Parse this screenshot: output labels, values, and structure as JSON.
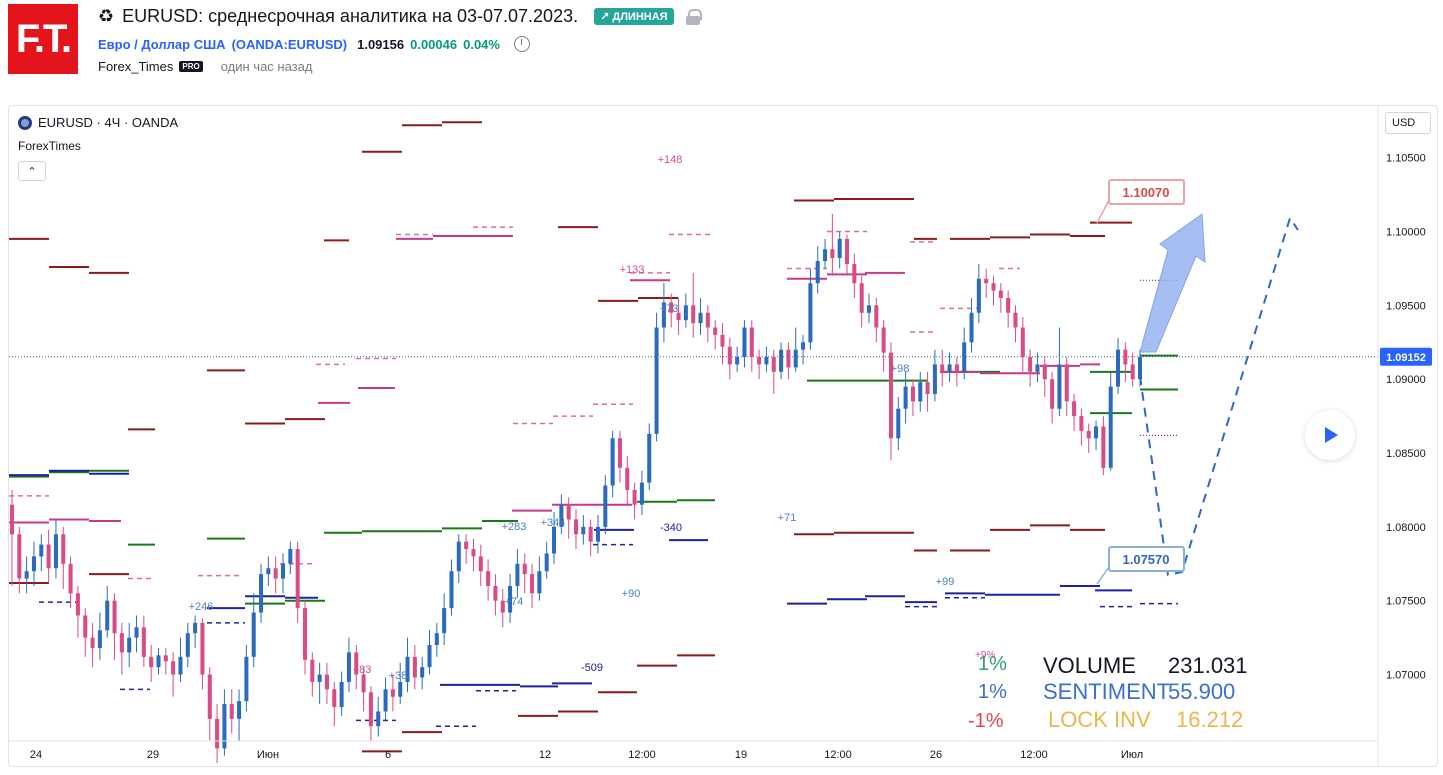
{
  "header": {
    "logo_text": "F.T.",
    "recycle_icon": "♻",
    "title": "EURUSD: среднесрочная аналитика на 03-07.07.2023.",
    "badge": "↗ ДЛИННАЯ",
    "symbol_name": "Евро / Доллар США",
    "symbol_code": "(OANDA:EURUSD)",
    "price": "1.09156",
    "change": "0.00046",
    "change_pct": "0.04%",
    "author": "Forex_Times",
    "pro_badge": "PRO",
    "time_ago": "один час назад"
  },
  "chart_legend": {
    "symbol": "EURUSD · 4Ч · OANDA",
    "indicator": "ForexTimes",
    "collapse": "⌃",
    "currency": "USD"
  },
  "stats": {
    "pct_volume": "1%",
    "pct_sentiment": "1%",
    "pct_lock": "-1%",
    "volume_label": "VOLUME",
    "volume_value": "231.031",
    "sentiment_label": "SENTIMENT",
    "sentiment_value": "55.900",
    "lock_label": "LOCK INV",
    "lock_value": "16.212",
    "pct_small": "+9%"
  },
  "chart_data": {
    "type": "candlestick",
    "symbol": "EURUSD",
    "timeframe": "4Ч",
    "ylim": [
      1.0655,
      1.1085
    ],
    "y_ticks": [
      "1.10500",
      "1.10000",
      "1.09500",
      "1.09000",
      "1.08500",
      "1.08000",
      "1.07500",
      "1.07000"
    ],
    "y_tick_values": [
      1.105,
      1.1,
      1.095,
      1.09,
      1.085,
      1.08,
      1.075,
      1.07
    ],
    "x_ticks": [
      "24",
      "29",
      "Июн",
      "6",
      "12",
      "12:00",
      "19",
      "12:00",
      "26",
      "12:00",
      "Июл"
    ],
    "current_price": "1.09152",
    "target_up": "1.10070",
    "target_down": "1.07570",
    "annotations": [
      "+148",
      "+133",
      "+73",
      "+283",
      "+344",
      "-340",
      "+71",
      "+90",
      "+74",
      "+246",
      "+99",
      "-509",
      "+98",
      "+83",
      "+38"
    ],
    "candles": [
      [
        1.0815,
        1.0795,
        1.076,
        1.0825
      ],
      [
        1.0795,
        1.0765,
        1.0755,
        1.08
      ],
      [
        1.0765,
        1.077,
        1.0755,
        1.078
      ],
      [
        1.077,
        1.078,
        1.076,
        1.079
      ],
      [
        1.078,
        1.0788,
        1.077,
        1.0795
      ],
      [
        1.0788,
        1.0772,
        1.0762,
        1.0798
      ],
      [
        1.0772,
        1.0795,
        1.0765,
        1.0805
      ],
      [
        1.0795,
        1.0775,
        1.0758,
        1.08
      ],
      [
        1.0775,
        1.0755,
        1.0745,
        1.078
      ],
      [
        1.0755,
        1.074,
        1.0725,
        1.076
      ],
      [
        1.074,
        1.0725,
        1.0712,
        1.0745
      ],
      [
        1.0725,
        1.0718,
        1.0705,
        1.0735
      ],
      [
        1.0718,
        1.073,
        1.071,
        1.0742
      ],
      [
        1.073,
        1.075,
        1.0725,
        1.076
      ],
      [
        1.075,
        1.0728,
        1.071,
        1.0755
      ],
      [
        1.0728,
        1.0715,
        1.07,
        1.0735
      ],
      [
        1.0715,
        1.0725,
        1.0705,
        1.0735
      ],
      [
        1.0725,
        1.0732,
        1.0715,
        1.074
      ],
      [
        1.0732,
        1.0712,
        1.0705,
        1.074
      ],
      [
        1.0712,
        1.0705,
        1.0695,
        1.072
      ],
      [
        1.0705,
        1.0713,
        1.07,
        1.0718
      ],
      [
        1.0713,
        1.0709,
        1.07,
        1.0718
      ],
      [
        1.0709,
        1.07,
        1.0685,
        1.0715
      ],
      [
        1.07,
        1.0712,
        1.0695,
        1.0725
      ],
      [
        1.0712,
        1.0728,
        1.0705,
        1.0735
      ],
      [
        1.0728,
        1.0735,
        1.0718,
        1.074
      ],
      [
        1.0735,
        1.07,
        1.069,
        1.0738
      ],
      [
        1.07,
        1.067,
        1.0655,
        1.0705
      ],
      [
        1.067,
        1.065,
        1.064,
        1.068
      ],
      [
        1.065,
        1.068,
        1.0645,
        1.069
      ],
      [
        1.068,
        1.067,
        1.066,
        1.069
      ],
      [
        1.067,
        1.0682,
        1.0655,
        1.069
      ],
      [
        1.0682,
        1.0712,
        1.0675,
        1.072
      ],
      [
        1.0712,
        1.0742,
        1.0705,
        1.0755
      ],
      [
        1.0742,
        1.0768,
        1.0735,
        1.0775
      ],
      [
        1.0768,
        1.0772,
        1.076,
        1.078
      ],
      [
        1.0772,
        1.0765,
        1.0755,
        1.078
      ],
      [
        1.0765,
        1.0775,
        1.0755,
        1.0782
      ],
      [
        1.0775,
        1.0785,
        1.0768,
        1.079
      ],
      [
        1.0785,
        1.0745,
        1.0735,
        1.079
      ],
      [
        1.0745,
        1.071,
        1.07,
        1.075
      ],
      [
        1.071,
        1.0695,
        1.0685,
        1.0715
      ],
      [
        1.0695,
        1.07,
        1.068,
        1.0708
      ],
      [
        1.07,
        1.069,
        1.068,
        1.0708
      ],
      [
        1.069,
        1.0678,
        1.0665,
        1.0695
      ],
      [
        1.0678,
        1.0695,
        1.0672,
        1.0702
      ],
      [
        1.0695,
        1.0715,
        1.0688,
        1.0725
      ],
      [
        1.0715,
        1.07,
        1.069,
        1.072
      ],
      [
        1.07,
        1.0688,
        1.0675,
        1.0705
      ],
      [
        1.0688,
        1.0665,
        1.0655,
        1.0692
      ],
      [
        1.0665,
        1.0675,
        1.0658,
        1.0685
      ],
      [
        1.0675,
        1.069,
        1.0668,
        1.0698
      ],
      [
        1.069,
        1.0685,
        1.0675,
        1.07
      ],
      [
        1.0685,
        1.0695,
        1.068,
        1.0708
      ],
      [
        1.0695,
        1.0712,
        1.0688,
        1.0725
      ],
      [
        1.0712,
        1.0698,
        1.069,
        1.072
      ],
      [
        1.0698,
        1.0705,
        1.069,
        1.0712
      ],
      [
        1.0705,
        1.072,
        1.07,
        1.073
      ],
      [
        1.072,
        1.0728,
        1.0712,
        1.0735
      ],
      [
        1.0728,
        1.0745,
        1.072,
        1.0755
      ],
      [
        1.0745,
        1.077,
        1.074,
        1.0778
      ],
      [
        1.077,
        1.079,
        1.0762,
        1.0795
      ],
      [
        1.079,
        1.0785,
        1.0775,
        1.0795
      ],
      [
        1.0785,
        1.078,
        1.077,
        1.0792
      ],
      [
        1.078,
        1.077,
        1.076,
        1.0788
      ],
      [
        1.077,
        1.076,
        1.075,
        1.0778
      ],
      [
        1.076,
        1.075,
        1.074,
        1.0768
      ],
      [
        1.075,
        1.0742,
        1.0732,
        1.0758
      ],
      [
        1.0742,
        1.076,
        1.0735,
        1.0768
      ],
      [
        1.076,
        1.0775,
        1.0752,
        1.0785
      ],
      [
        1.0775,
        1.0768,
        1.0755,
        1.0782
      ],
      [
        1.0768,
        1.0755,
        1.0745,
        1.0775
      ],
      [
        1.0755,
        1.077,
        1.075,
        1.078
      ],
      [
        1.077,
        1.0782,
        1.0765,
        1.079
      ],
      [
        1.0782,
        1.08,
        1.0775,
        1.081
      ],
      [
        1.08,
        1.0815,
        1.0795,
        1.0822
      ],
      [
        1.0815,
        1.0805,
        1.0792,
        1.082
      ],
      [
        1.0805,
        1.0795,
        1.0785,
        1.0812
      ],
      [
        1.0795,
        1.08,
        1.0788,
        1.0808
      ],
      [
        1.08,
        1.079,
        1.078,
        1.0805
      ],
      [
        1.079,
        1.08,
        1.0782,
        1.0808
      ],
      [
        1.08,
        1.0828,
        1.0795,
        1.0835
      ],
      [
        1.0828,
        1.086,
        1.082,
        1.0865
      ],
      [
        1.086,
        1.084,
        1.083,
        1.0865
      ],
      [
        1.084,
        1.0825,
        1.0815,
        1.0848
      ],
      [
        1.0825,
        1.0815,
        1.0805,
        1.083
      ],
      [
        1.0815,
        1.083,
        1.0808,
        1.0838
      ],
      [
        1.083,
        1.0863,
        1.0825,
        1.087
      ],
      [
        1.0863,
        1.0935,
        1.0858,
        1.0945
      ],
      [
        1.0935,
        1.0952,
        1.0925,
        1.0965
      ],
      [
        1.0952,
        1.0945,
        1.0935,
        1.0958
      ],
      [
        1.0945,
        1.094,
        1.093,
        1.0955
      ],
      [
        1.094,
        1.095,
        1.0935,
        1.0958
      ],
      [
        1.095,
        1.0938,
        1.0928,
        1.0972
      ],
      [
        1.0938,
        1.0945,
        1.093,
        1.0955
      ],
      [
        1.0945,
        1.0935,
        1.0925,
        1.095
      ],
      [
        1.0935,
        1.093,
        1.092,
        1.094
      ],
      [
        1.093,
        1.0922,
        1.091,
        1.0938
      ],
      [
        1.0922,
        1.091,
        1.09,
        1.0928
      ],
      [
        1.091,
        1.0915,
        1.0905,
        1.0922
      ],
      [
        1.0915,
        1.0935,
        1.0908,
        1.094
      ],
      [
        1.0935,
        1.0915,
        1.0905,
        1.094
      ],
      [
        1.0915,
        1.091,
        1.09,
        1.092
      ],
      [
        1.091,
        1.0915,
        1.0905,
        1.0922
      ],
      [
        1.0915,
        1.0905,
        1.089,
        1.092
      ],
      [
        1.0905,
        1.092,
        1.09,
        1.0925
      ],
      [
        1.092,
        1.0908,
        1.09,
        1.0925
      ],
      [
        1.0908,
        1.092,
        1.0905,
        1.0935
      ],
      [
        1.092,
        1.0925,
        1.091,
        1.093
      ],
      [
        1.0925,
        1.0965,
        1.092,
        1.0975
      ],
      [
        1.0965,
        1.098,
        1.0958,
        1.099
      ],
      [
        1.098,
        1.0988,
        1.0975,
        1.0995
      ],
      [
        1.0988,
        1.0982,
        1.097,
        1.1012
      ],
      [
        1.0982,
        1.0995,
        1.0975,
        1.1
      ],
      [
        1.0995,
        1.0978,
        1.097,
        1.0998
      ],
      [
        1.0978,
        1.0965,
        1.0955,
        1.0985
      ],
      [
        1.0965,
        1.0945,
        1.0935,
        1.097
      ],
      [
        1.0945,
        1.095,
        1.0938,
        1.0958
      ],
      [
        1.095,
        1.0935,
        1.0925,
        1.0955
      ],
      [
        1.0935,
        1.0918,
        1.0905,
        1.094
      ],
      [
        1.0918,
        1.086,
        1.0845,
        1.0925
      ],
      [
        1.086,
        1.088,
        1.0852,
        1.0888
      ],
      [
        1.088,
        1.0895,
        1.087,
        1.0905
      ],
      [
        1.0895,
        1.0885,
        1.0875,
        1.09
      ],
      [
        1.0885,
        1.0898,
        1.0878,
        1.0905
      ],
      [
        1.0898,
        1.089,
        1.0878,
        1.0905
      ],
      [
        1.089,
        1.091,
        1.0885,
        1.092
      ],
      [
        1.091,
        1.0905,
        1.0895,
        1.092
      ],
      [
        1.0905,
        1.091,
        1.0898,
        1.0918
      ],
      [
        1.091,
        1.0905,
        1.0895,
        1.0915
      ],
      [
        1.0905,
        1.0925,
        1.09,
        1.0935
      ],
      [
        1.0925,
        1.0945,
        1.0918,
        1.0955
      ],
      [
        1.0945,
        1.0968,
        1.0938,
        1.0978
      ],
      [
        1.0968,
        1.0965,
        1.0955,
        1.0975
      ],
      [
        1.0965,
        1.096,
        1.095,
        1.097
      ],
      [
        1.096,
        1.0955,
        1.0945,
        1.0965
      ],
      [
        1.0955,
        1.0945,
        1.0935,
        1.096
      ],
      [
        1.0945,
        1.0935,
        1.0925,
        1.095
      ],
      [
        1.0935,
        1.0915,
        1.0905,
        1.0942
      ],
      [
        1.0915,
        1.0905,
        1.0895,
        1.092
      ],
      [
        1.0905,
        1.091,
        1.0898,
        1.0918
      ],
      [
        1.091,
        1.09,
        1.0888,
        1.0915
      ],
      [
        1.09,
        1.088,
        1.087,
        1.0905
      ],
      [
        1.088,
        1.091,
        1.0875,
        1.0935
      ],
      [
        1.091,
        1.0885,
        1.0875,
        1.0915
      ],
      [
        1.0885,
        1.0875,
        1.0865,
        1.089
      ],
      [
        1.0875,
        1.0865,
        1.0855,
        1.088
      ],
      [
        1.0865,
        1.086,
        1.085,
        1.087
      ],
      [
        1.086,
        1.0868,
        1.0852,
        1.0872
      ],
      [
        1.0868,
        1.084,
        1.0835,
        1.0875
      ],
      [
        1.084,
        1.0895,
        1.0838,
        1.0905
      ],
      [
        1.0895,
        1.092,
        1.089,
        1.0928
      ],
      [
        1.092,
        1.091,
        1.0898,
        1.0925
      ],
      [
        1.091,
        1.09,
        1.0895,
        1.0918
      ],
      [
        1.09,
        1.0915,
        1.0895,
        1.092
      ]
    ]
  }
}
